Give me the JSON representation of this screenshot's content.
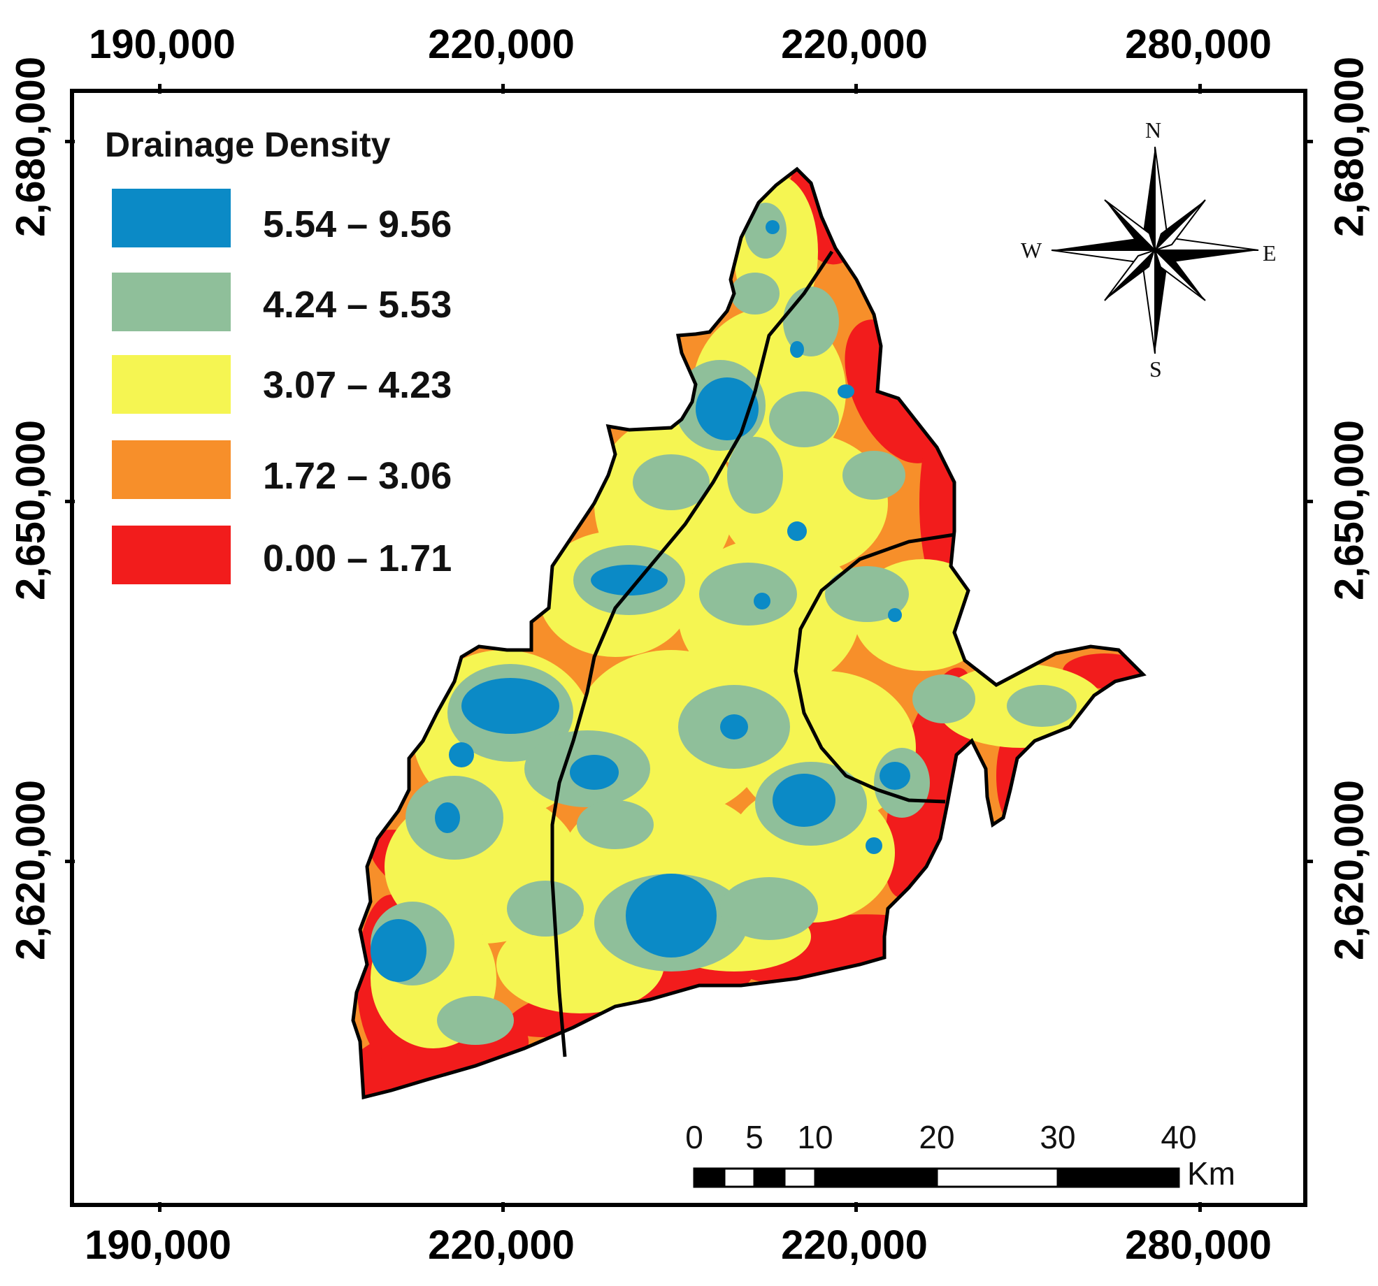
{
  "axes": {
    "top": [
      "190,000",
      "220,000",
      "220,000",
      "280,000"
    ],
    "bottom": [
      "190,000",
      "220,000",
      "220,000",
      "280,000"
    ],
    "left": [
      "2,680,000",
      "2,650,000",
      "2,620,000"
    ],
    "right": [
      "2,680,000",
      "2,650,000",
      "2,620,000"
    ]
  },
  "legend": {
    "title": "Drainage Density",
    "classes": [
      {
        "label": "5.54 – 9.56",
        "color": "#0b8ac6"
      },
      {
        "label": "4.24 – 5.53",
        "color": "#8fbf9a"
      },
      {
        "label": "3.07 – 4.23",
        "color": "#f5f552"
      },
      {
        "label": "1.72 – 3.06",
        "color": "#f78f2a"
      },
      {
        "label": "0.00 – 1.71",
        "color": "#f21c1c"
      }
    ]
  },
  "compass": {
    "n": "N",
    "s": "S",
    "e": "E",
    "w": "W"
  },
  "scalebar": {
    "ticks": [
      "0",
      "5",
      "10",
      "20",
      "30",
      "40"
    ],
    "unit": "Km"
  },
  "colors": {
    "high": "#0b8ac6",
    "midhigh": "#8fbf9a",
    "mid": "#f5f552",
    "midlow": "#f78f2a",
    "low": "#f21c1c",
    "boundary": "#000000"
  }
}
